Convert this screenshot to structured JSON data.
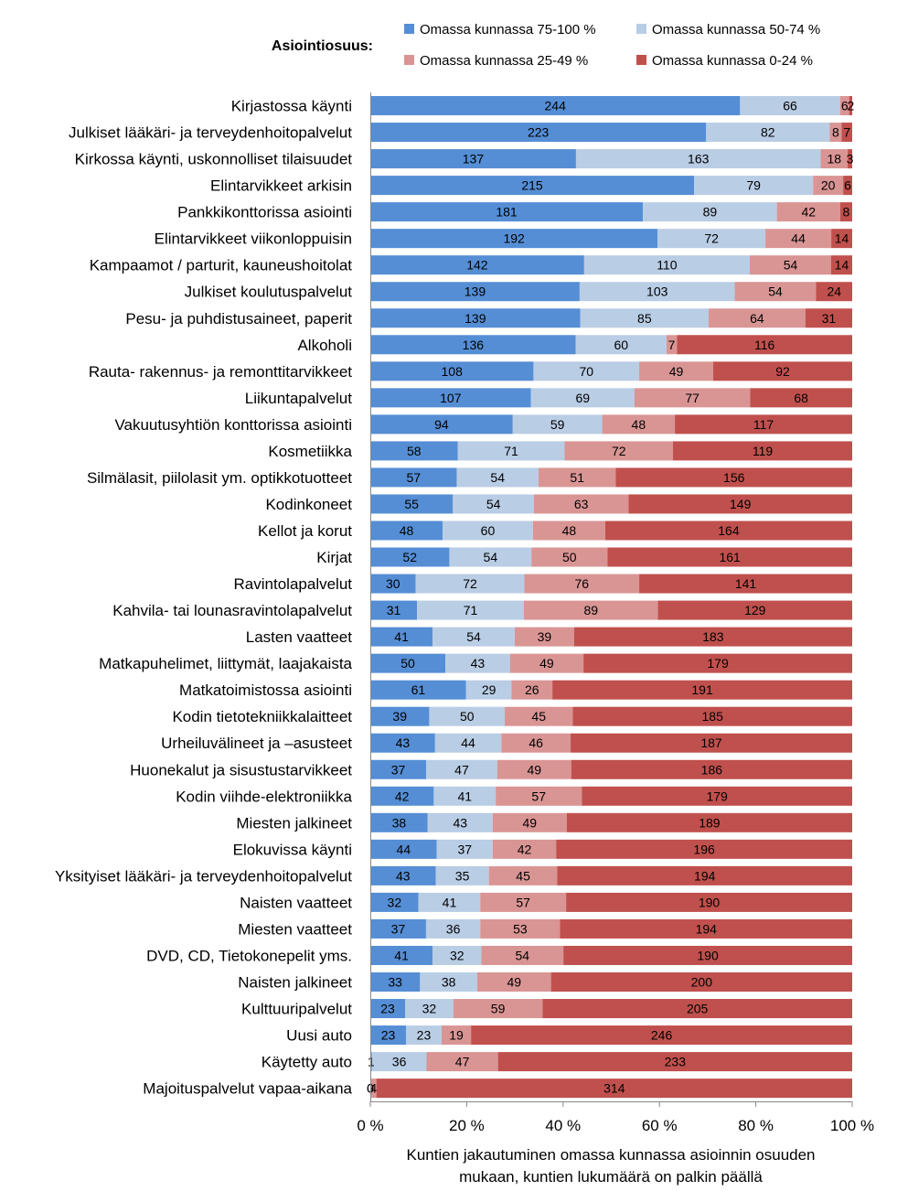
{
  "chart_data": {
    "type": "bar",
    "orientation": "horizontal",
    "stacked": "percent",
    "legend_title": "Asiointiosuus:",
    "xlabel_lines": [
      "Kuntien jakautuminen omassa kunnassa asioinnin osuuden",
      "mukaan, kuntien lukumäärä on palkin päällä"
    ],
    "ticks": [
      "0 %",
      "20 %",
      "40 %",
      "60 %",
      "80 %",
      "100 %"
    ],
    "xlim": [
      0,
      100
    ],
    "categories": [
      "Kirjastossa käynti",
      "Julkiset lääkäri- ja terveydenhoitopalvelut",
      "Kirkossa käynti, uskonnolliset tilaisuudet",
      "Elintarvikkeet arkisin",
      "Pankkikonttorissa asiointi",
      "Elintarvikkeet viikonloppuisin",
      "Kampaamot / parturit, kauneushoitolat",
      "Julkiset koulutuspalvelut",
      "Pesu- ja puhdistusaineet, paperit",
      "Alkoholi",
      "Rauta- rakennus- ja remonttitarvikkeet",
      "Liikuntapalvelut",
      "Vakuutusyhtiön konttorissa asiointi",
      "Kosmetiikka",
      "Silmälasit, piilolasit ym. optikkotuotteet",
      "Kodinkoneet",
      "Kellot ja korut",
      "Kirjat",
      "Ravintolapalvelut",
      "Kahvila- tai lounasravintolapalvelut",
      "Lasten vaatteet",
      "Matkapuhelimet, liittymät, laajakaista",
      "Matkatoimistossa asiointi",
      "Kodin tietotekniikkalaitteet",
      "Urheiluvälineet ja –asusteet",
      "Huonekalut ja sisustustarvikkeet",
      "Kodin viihde-elektroniikka",
      "Miesten jalkineet",
      "Elokuvissa käynti",
      "Yksityiset lääkäri- ja terveydenhoitopalvelut",
      "Naisten vaatteet",
      "Miesten vaatteet",
      "DVD, CD, Tietokonepelit yms.",
      "Naisten jalkineet",
      "Kulttuuripalvelut",
      "Uusi auto",
      "Käytetty auto",
      "Majoituspalvelut vapaa-aikana"
    ],
    "series": [
      {
        "name": "Omassa kunnassa 75-100 %",
        "color": "#558ed5",
        "values": [
          244,
          223,
          137,
          215,
          181,
          192,
          142,
          139,
          139,
          136,
          108,
          107,
          94,
          58,
          57,
          55,
          48,
          52,
          30,
          31,
          41,
          50,
          61,
          39,
          43,
          37,
          42,
          38,
          44,
          43,
          32,
          37,
          41,
          33,
          23,
          23,
          1,
          0
        ]
      },
      {
        "name": "Omassa kunnassa 50-74 %",
        "color": "#b9cde5",
        "values": [
          66,
          82,
          163,
          79,
          89,
          72,
          110,
          103,
          85,
          60,
          70,
          69,
          59,
          71,
          54,
          54,
          60,
          54,
          72,
          71,
          54,
          43,
          29,
          50,
          44,
          47,
          41,
          43,
          37,
          35,
          41,
          36,
          32,
          38,
          32,
          23,
          36,
          0
        ]
      },
      {
        "name": "Omassa kunnassa 25-49 %",
        "color": "#d99594",
        "values": [
          6,
          8,
          18,
          20,
          42,
          44,
          54,
          54,
          64,
          7,
          49,
          77,
          48,
          72,
          51,
          63,
          48,
          50,
          76,
          89,
          39,
          49,
          26,
          45,
          46,
          49,
          57,
          49,
          42,
          45,
          57,
          53,
          54,
          49,
          59,
          19,
          47,
          4
        ]
      },
      {
        "name": "Omassa kunnassa 0-24 %",
        "color": "#c0504d",
        "values": [
          2,
          7,
          3,
          6,
          8,
          14,
          14,
          24,
          31,
          116,
          92,
          68,
          117,
          119,
          156,
          149,
          164,
          161,
          141,
          129,
          183,
          179,
          191,
          185,
          187,
          186,
          179,
          189,
          196,
          194,
          190,
          194,
          190,
          200,
          205,
          246,
          233,
          314
        ]
      }
    ]
  }
}
